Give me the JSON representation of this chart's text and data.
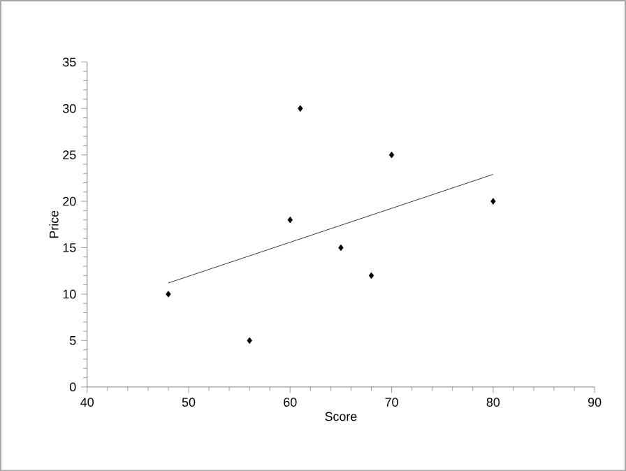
{
  "chart_data": {
    "type": "scatter",
    "xlabel": "Score",
    "ylabel": "Price",
    "series": [
      {
        "color": "#000000",
        "marker": "diamond",
        "x": [
          48,
          56,
          60,
          61,
          65,
          68,
          70,
          80
        ],
        "values": [
          10,
          5,
          18,
          30,
          15,
          12,
          25,
          20
        ]
      },
      {
        "type": "line",
        "color": "#000000",
        "marker": "none",
        "x": [
          48,
          80
        ],
        "values": [
          11.2,
          22.9
        ]
      }
    ],
    "xlim": [
      40,
      90
    ],
    "ylim": [
      0,
      35
    ],
    "xticks": [
      40,
      50,
      60,
      70,
      80,
      90
    ],
    "yticks": [
      0,
      5,
      10,
      15,
      20,
      25,
      30,
      35
    ],
    "grid": false
  }
}
